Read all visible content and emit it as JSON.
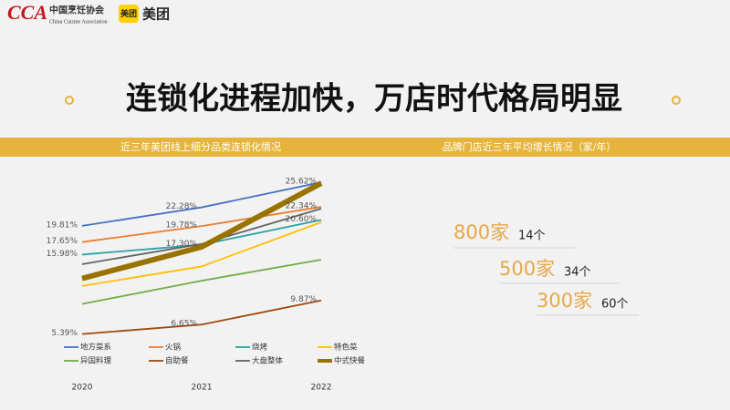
{
  "header": {
    "logo_mark": "CCA",
    "org_name": "中国烹饪协会",
    "org_name_en": "China Cuisine Association",
    "badge": "美团",
    "brand": "美团"
  },
  "title": "连锁化进程加快，万店时代格局明显",
  "section_headings": [
    "近三年美团线上细分品类连锁化情况",
    "品牌门店近三年平均增长情况（家/年）"
  ],
  "growth": [
    {
      "stores": "800家",
      "growth": "14个"
    },
    {
      "stores": "500家",
      "growth": "34个"
    },
    {
      "stores": "300家",
      "growth": "60个"
    }
  ],
  "chart_data": {
    "type": "line",
    "categories": [
      "2020",
      "2021",
      "2022"
    ],
    "ylim": [
      0,
      30
    ],
    "legend": "bottom",
    "series": [
      {
        "name": "地方菜系",
        "color": "#4472c4",
        "values": [
          19.81,
          22.28,
          25.62
        ],
        "value_labels": [
          "19.81%",
          "22.28%",
          "25.62%"
        ]
      },
      {
        "name": "火锅",
        "color": "#ed7d31",
        "values": [
          17.65,
          19.78,
          22.34
        ],
        "value_labels": [
          "17.65%",
          "19.78%",
          "22.34%"
        ]
      },
      {
        "name": "烧烤",
        "color": "#2aa1a6",
        "values": [
          15.98,
          17.3,
          20.6
        ],
        "value_labels": [
          "15.98%",
          "17.30%",
          "20.60%"
        ]
      },
      {
        "name": "特色菜",
        "color": "#ffc000",
        "values": [
          11.8,
          14.4,
          20.3
        ]
      },
      {
        "name": "异国料理",
        "color": "#70ad47",
        "values": [
          9.4,
          12.5,
          15.3
        ]
      },
      {
        "name": "自助餐",
        "color": "#9e480e",
        "values": [
          5.39,
          6.65,
          9.87
        ],
        "value_labels": [
          "5.39%",
          "6.65%",
          "9.87%"
        ]
      },
      {
        "name": "大盘整体",
        "color": "#636363",
        "values": [
          14.7,
          17.4,
          22.1
        ]
      },
      {
        "name": "中式快餐",
        "color": "#997300",
        "values": [
          12.8,
          17.0,
          25.5
        ],
        "width": 6
      }
    ]
  }
}
